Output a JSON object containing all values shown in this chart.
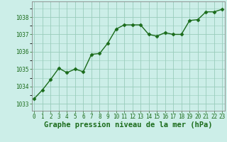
{
  "x": [
    0,
    1,
    2,
    3,
    4,
    5,
    6,
    7,
    8,
    9,
    10,
    11,
    12,
    13,
    14,
    15,
    16,
    17,
    18,
    19,
    20,
    21,
    22,
    23
  ],
  "y": [
    1033.3,
    1033.8,
    1034.4,
    1035.05,
    1034.8,
    1035.0,
    1034.85,
    1035.85,
    1035.9,
    1036.5,
    1037.3,
    1037.55,
    1037.55,
    1037.55,
    1037.0,
    1036.9,
    1037.1,
    1037.0,
    1037.0,
    1037.8,
    1037.85,
    1038.3,
    1038.3,
    1038.45
  ],
  "line_color": "#1a6b1a",
  "marker_color": "#1a6b1a",
  "bg_color": "#cceee8",
  "grid_color": "#99ccbb",
  "xlabel": "Graphe pression niveau de la mer (hPa)",
  "xlabel_color": "#1a6b1a",
  "ylabel_ticks": [
    1033,
    1034,
    1035,
    1036,
    1037,
    1038
  ],
  "xticks": [
    0,
    1,
    2,
    3,
    4,
    5,
    6,
    7,
    8,
    9,
    10,
    11,
    12,
    13,
    14,
    15,
    16,
    17,
    18,
    19,
    20,
    21,
    22,
    23
  ],
  "ylim": [
    1032.6,
    1038.9
  ],
  "xlim": [
    -0.3,
    23.3
  ],
  "tick_color": "#1a6b1a",
  "tick_fontsize": 5.5,
  "xlabel_fontsize": 7.5,
  "linewidth": 1.0,
  "markersize": 2.5
}
